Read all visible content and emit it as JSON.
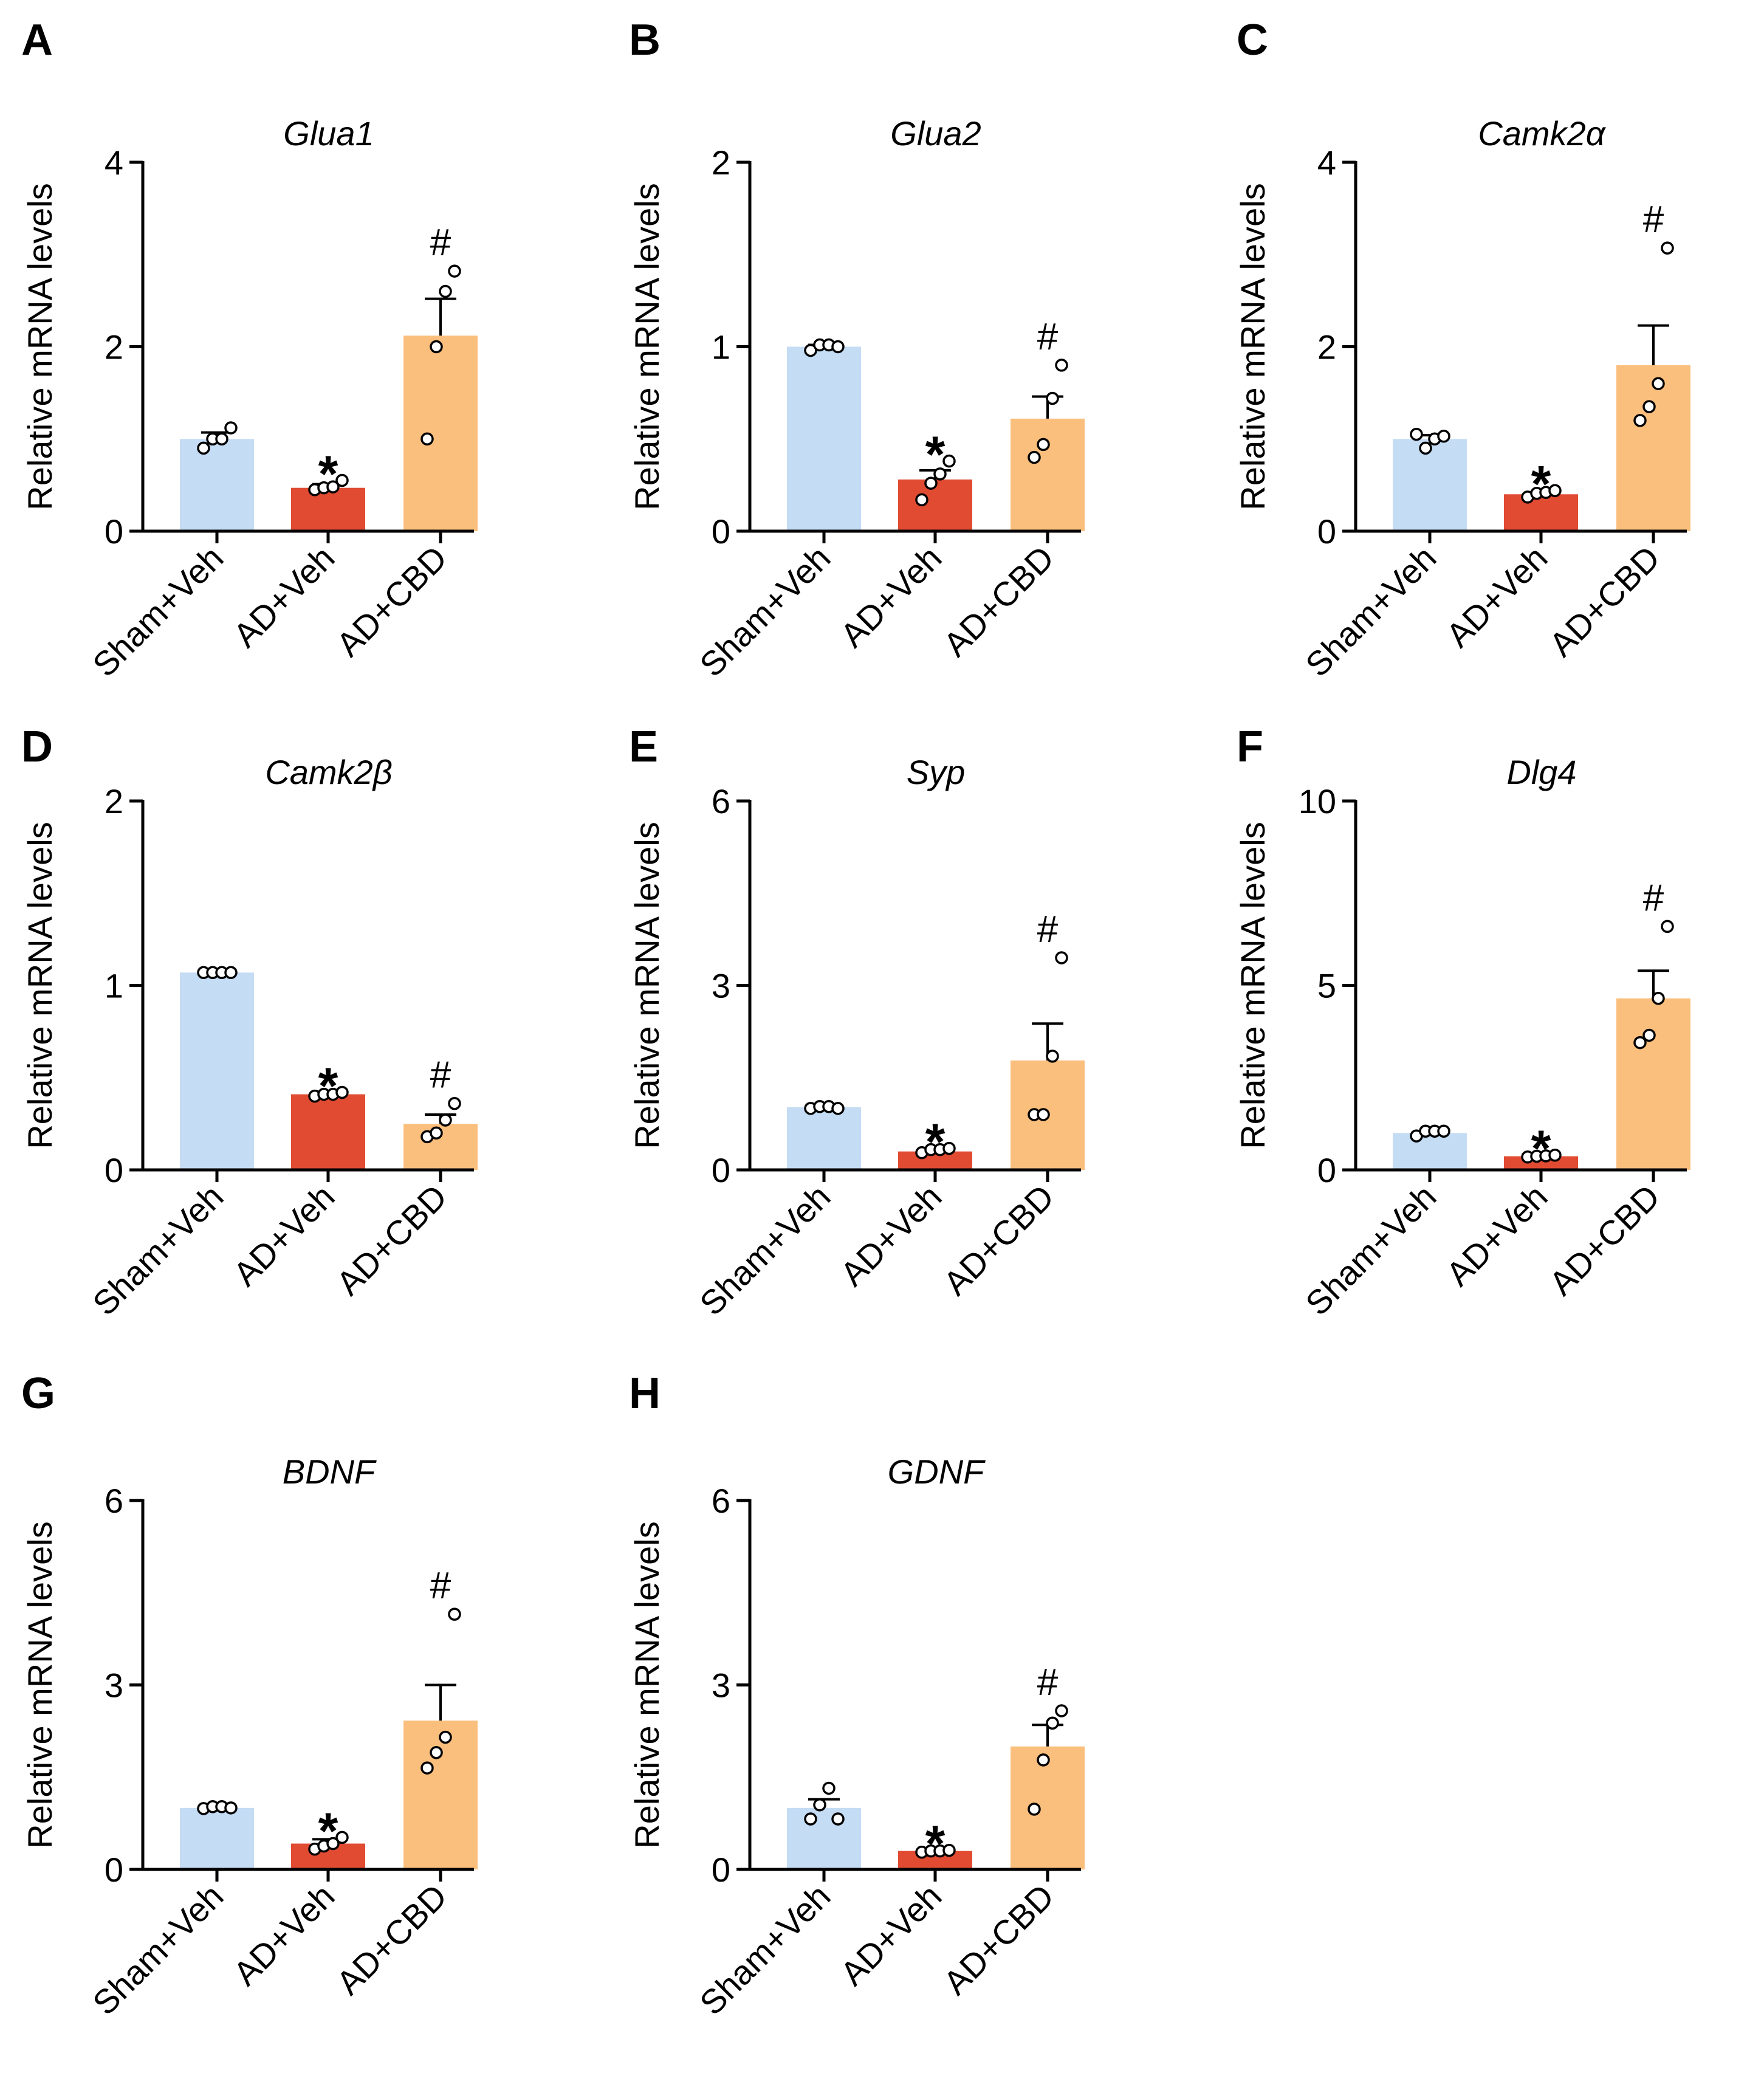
{
  "colors": {
    "Sham+Veh": "#c5dcf5",
    "AD+Veh": "#e04b32",
    "AD+CBD": "#fbbf7d"
  },
  "common": {
    "ylabel": "Relative mRNA levels",
    "categories": [
      "Sham+Veh",
      "AD+Veh",
      "AD+CBD"
    ]
  },
  "chart_data": [
    {
      "panel": "A",
      "type": "bar",
      "title": "Glua1",
      "ylabel": "Relative mRNA levels",
      "categories": [
        "Sham+Veh",
        "AD+Veh",
        "AD+CBD"
      ],
      "values": [
        1.0,
        0.47,
        2.12
      ],
      "sem": [
        0.07,
        0.04,
        0.4
      ],
      "ylim": [
        0,
        4
      ],
      "yticks": [
        0,
        2,
        4
      ],
      "points": [
        [
          0.9,
          1.0,
          1.0,
          1.12
        ],
        [
          0.45,
          0.47,
          0.48,
          0.55
        ],
        [
          1.0,
          2.0,
          2.6,
          2.82
        ]
      ],
      "significance": [
        "",
        "*",
        "#"
      ]
    },
    {
      "panel": "B",
      "type": "bar",
      "title": "Glua2",
      "ylabel": "Relative mRNA levels",
      "categories": [
        "Sham+Veh",
        "AD+Veh",
        "AD+CBD"
      ],
      "values": [
        1.0,
        0.28,
        0.61
      ],
      "sem": [
        0.01,
        0.05,
        0.12
      ],
      "ylim": [
        0,
        2
      ],
      "yticks": [
        0,
        1,
        2
      ],
      "points": [
        [
          0.98,
          1.01,
          1.01,
          1.0
        ],
        [
          0.17,
          0.26,
          0.31,
          0.38
        ],
        [
          0.4,
          0.47,
          0.72,
          0.9
        ]
      ],
      "significance": [
        "",
        "*",
        "#"
      ]
    },
    {
      "panel": "C",
      "type": "bar",
      "title": "Camk2α",
      "ylabel": "Relative mRNA levels",
      "categories": [
        "Sham+Veh",
        "AD+Veh",
        "AD+CBD"
      ],
      "values": [
        1.0,
        0.4,
        1.8
      ],
      "sem": [
        0.04,
        0.02,
        0.43
      ],
      "ylim": [
        0,
        4
      ],
      "yticks": [
        0,
        2,
        4
      ],
      "points": [
        [
          1.05,
          0.9,
          1.0,
          1.03
        ],
        [
          0.37,
          0.41,
          0.42,
          0.44
        ],
        [
          1.2,
          1.35,
          1.6,
          3.07
        ]
      ],
      "significance": [
        "",
        "*",
        "#"
      ]
    },
    {
      "panel": "D",
      "type": "bar",
      "title": "Camk2β",
      "ylabel": "Relative mRNA levels",
      "categories": [
        "Sham+Veh",
        "AD+Veh",
        "AD+CBD"
      ],
      "values": [
        1.07,
        0.41,
        0.25
      ],
      "sem": [
        0.0,
        0.01,
        0.05
      ],
      "ylim": [
        0,
        2
      ],
      "yticks": [
        0,
        1,
        2
      ],
      "points": [
        [
          1.07,
          1.07,
          1.07,
          1.07
        ],
        [
          0.4,
          0.41,
          0.41,
          0.42
        ],
        [
          0.18,
          0.2,
          0.27,
          0.36
        ]
      ],
      "significance": [
        "",
        "*",
        "#"
      ]
    },
    {
      "panel": "E",
      "type": "bar",
      "title": "Syp",
      "ylabel": "Relative mRNA levels",
      "categories": [
        "Sham+Veh",
        "AD+Veh",
        "AD+CBD"
      ],
      "values": [
        1.02,
        0.3,
        1.78
      ],
      "sem": [
        0.01,
        0.02,
        0.6
      ],
      "ylim": [
        0,
        6
      ],
      "yticks": [
        0,
        3,
        6
      ],
      "points": [
        [
          1.0,
          1.03,
          1.03,
          1.0
        ],
        [
          0.28,
          0.33,
          0.33,
          0.35
        ],
        [
          0.9,
          0.9,
          1.85,
          3.45
        ]
      ],
      "significance": [
        "",
        "*",
        "#"
      ]
    },
    {
      "panel": "F",
      "type": "bar",
      "title": "Dlg4",
      "ylabel": "Relative mRNA levels",
      "categories": [
        "Sham+Veh",
        "AD+Veh",
        "AD+CBD"
      ],
      "values": [
        1.0,
        0.37,
        4.65
      ],
      "sem": [
        0.05,
        0.02,
        0.75
      ],
      "ylim": [
        0,
        10
      ],
      "yticks": [
        0,
        5,
        10
      ],
      "points": [
        [
          0.92,
          1.05,
          1.05,
          1.05
        ],
        [
          0.35,
          0.37,
          0.38,
          0.4
        ],
        [
          3.45,
          3.65,
          4.65,
          6.6
        ]
      ],
      "significance": [
        "",
        "*",
        "#"
      ]
    },
    {
      "panel": "G",
      "type": "bar",
      "title": "BDNF",
      "ylabel": "Relative mRNA levels",
      "categories": [
        "Sham+Veh",
        "AD+Veh",
        "AD+CBD"
      ],
      "values": [
        1.0,
        0.42,
        2.42
      ],
      "sem": [
        0.01,
        0.07,
        0.58
      ],
      "ylim": [
        0,
        6
      ],
      "yticks": [
        0,
        3,
        6
      ],
      "points": [
        [
          0.99,
          1.02,
          1.02,
          1.0
        ],
        [
          0.33,
          0.38,
          0.42,
          0.52
        ],
        [
          1.65,
          1.9,
          2.15,
          4.15
        ]
      ],
      "significance": [
        "",
        "*",
        "#"
      ]
    },
    {
      "panel": "H",
      "type": "bar",
      "title": "GDNF",
      "ylabel": "Relative mRNA levels",
      "categories": [
        "Sham+Veh",
        "AD+Veh",
        "AD+CBD"
      ],
      "values": [
        1.0,
        0.3,
        2.0
      ],
      "sem": [
        0.14,
        0.01,
        0.35
      ],
      "ylim": [
        0,
        6
      ],
      "yticks": [
        0,
        3,
        6
      ],
      "points": [
        [
          0.82,
          1.05,
          1.32,
          0.82
        ],
        [
          0.28,
          0.3,
          0.3,
          0.31
        ],
        [
          0.98,
          1.78,
          2.38,
          2.58
        ]
      ],
      "significance": [
        "",
        "*",
        "#"
      ]
    }
  ]
}
